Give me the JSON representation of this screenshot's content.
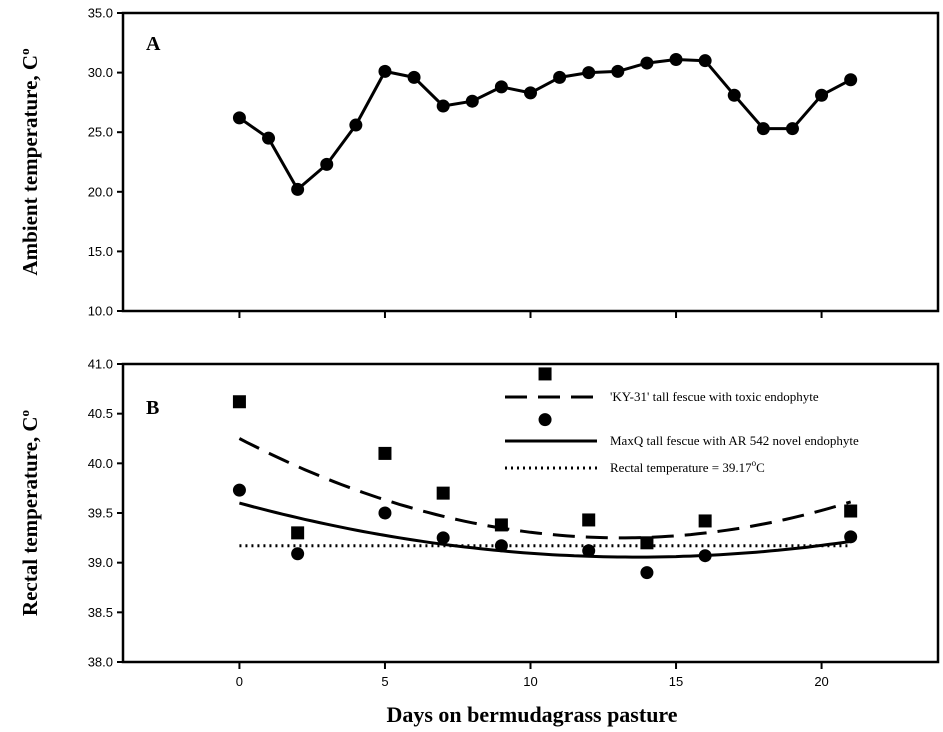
{
  "chart_data": [
    {
      "type": "line",
      "panel_label": "A",
      "ylabel": "Ambient temperature, C",
      "ylabel_sup": "o",
      "ylim": [
        10,
        35
      ],
      "xlim": [
        -4,
        24
      ],
      "yticks": [
        "10.0",
        "15.0",
        "20.0",
        "25.0",
        "30.0",
        "35.0"
      ],
      "xticks": [
        0,
        5,
        10,
        15,
        20
      ],
      "xtick_labels_shown": false,
      "series": [
        {
          "x": [
            0,
            1,
            2,
            3,
            4,
            5,
            6,
            7,
            8,
            9,
            10,
            11,
            12,
            13,
            14,
            15,
            16,
            17,
            18,
            19,
            20,
            21
          ],
          "values": [
            26.2,
            24.5,
            20.2,
            22.3,
            25.6,
            30.1,
            29.6,
            27.2,
            27.6,
            28.8,
            28.3,
            29.6,
            30.0,
            30.1,
            30.8,
            31.1,
            31.0,
            28.1,
            25.3,
            25.3,
            28.1,
            29.4
          ],
          "marker": "circle",
          "line": "solid"
        }
      ]
    },
    {
      "type": "scatter",
      "panel_label": "B",
      "ylabel": "Rectal temperature, C",
      "ylabel_sup": "o",
      "xlabel": "Days on bermudagrass pasture",
      "ylim": [
        38,
        41
      ],
      "xlim": [
        -4,
        24
      ],
      "yticks": [
        "38.0",
        "38.5",
        "39.0",
        "39.5",
        "40.0",
        "40.5",
        "41.0"
      ],
      "xticks": [
        "0",
        "5",
        "10",
        "15",
        "20"
      ],
      "legend_placement": "top-right",
      "series": [
        {
          "name": "'KY-31' tall fescue with toxic endophyte",
          "marker": "square",
          "line": "dashed",
          "x": [
            0,
            2,
            5,
            7,
            9,
            12,
            14,
            16,
            21
          ],
          "values": [
            40.62,
            39.3,
            40.1,
            39.7,
            39.38,
            39.43,
            39.2,
            39.42,
            39.52
          ],
          "fit": [
            0.00582,
            -0.1526,
            40.25
          ]
        },
        {
          "name": "MaxQ tall fescue with AR 542 novel endophyte",
          "marker": "circle",
          "line": "solid",
          "x": [
            0,
            2,
            5,
            7,
            9,
            12,
            14,
            16,
            21
          ],
          "values": [
            39.73,
            39.09,
            39.5,
            39.25,
            39.17,
            39.12,
            38.9,
            39.07,
            39.26
          ],
          "fit": [
            0.00292,
            -0.0797,
            39.6
          ]
        },
        {
          "name": "Rectal temperature = 39.17",
          "name_suffix_sup": "o",
          "name_suffix": "C",
          "line": "dotted",
          "constant": 39.17
        }
      ],
      "legend_points": [
        {
          "marker": "square",
          "x": 10.5,
          "value": 40.9
        },
        {
          "marker": "circle",
          "x": 10.5,
          "value": 40.44
        }
      ]
    }
  ]
}
